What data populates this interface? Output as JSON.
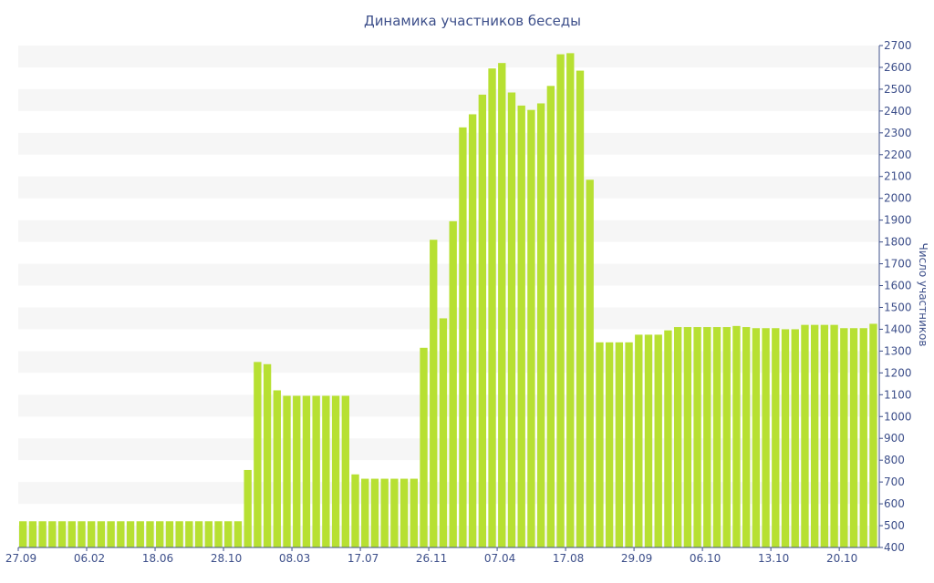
{
  "chart_data": {
    "type": "bar",
    "title": "Динамика участников беседы",
    "xlabel": "",
    "ylabel": "Число участников",
    "ylim": [
      400,
      2700
    ],
    "yticks": [
      400,
      500,
      600,
      700,
      800,
      900,
      1000,
      1100,
      1200,
      1300,
      1400,
      1500,
      1600,
      1700,
      1800,
      1900,
      2000,
      2100,
      2200,
      2300,
      2400,
      2500,
      2600,
      2700
    ],
    "y_axis_position": "right",
    "grid": "alternating-horizontal-bands",
    "xtick_labels": [
      "27.09",
      "06.02",
      "18.06",
      "28.10",
      "08.03",
      "17.07",
      "26.11",
      "07.04",
      "17.08",
      "29.09",
      "06.10",
      "13.10",
      "20.10"
    ],
    "xtick_bar_index": [
      0,
      7,
      14,
      21,
      28,
      35,
      42,
      49,
      56,
      63,
      70,
      77,
      84
    ],
    "bar_color": "#b7e032",
    "values": [
      520,
      520,
      520,
      520,
      520,
      520,
      520,
      520,
      520,
      520,
      520,
      520,
      520,
      520,
      520,
      520,
      520,
      520,
      520,
      520,
      520,
      520,
      520,
      755,
      1250,
      1240,
      1120,
      1095,
      1095,
      1095,
      1095,
      1095,
      1095,
      1095,
      735,
      715,
      715,
      715,
      715,
      715,
      715,
      1315,
      1810,
      1450,
      1895,
      2325,
      2385,
      2475,
      2595,
      2620,
      2485,
      2425,
      2405,
      2435,
      2515,
      2660,
      2665,
      2585,
      2085,
      1340,
      1340,
      1340,
      1340,
      1375,
      1375,
      1375,
      1395,
      1410,
      1410,
      1410,
      1410,
      1410,
      1410,
      1415,
      1410,
      1405,
      1405,
      1405,
      1400,
      1400,
      1420,
      1420,
      1420,
      1420,
      1405,
      1405,
      1405,
      1425
    ]
  }
}
